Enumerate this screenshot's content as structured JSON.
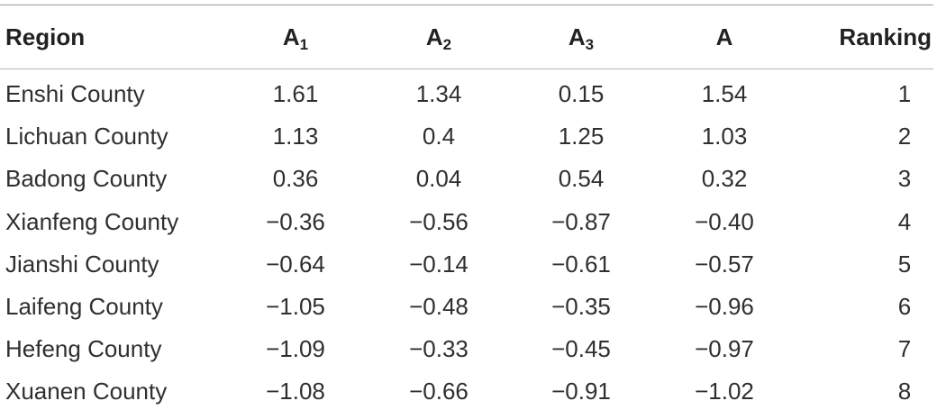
{
  "table": {
    "headers": {
      "region": "Region",
      "a1_base": "A",
      "a1_sub": "1",
      "a2_base": "A",
      "a2_sub": "2",
      "a3_base": "A",
      "a3_sub": "3",
      "a": "A",
      "ranking": "Ranking"
    },
    "rows": [
      {
        "region": "Enshi County",
        "a1": "1.61",
        "a2": "1.34",
        "a3": "0.15",
        "a": "1.54",
        "ranking": "1"
      },
      {
        "region": "Lichuan County",
        "a1": "1.13",
        "a2": "0.4",
        "a3": "1.25",
        "a": "1.03",
        "ranking": "2"
      },
      {
        "region": "Badong County",
        "a1": "0.36",
        "a2": "0.04",
        "a3": "0.54",
        "a": "0.32",
        "ranking": "3"
      },
      {
        "region": "Xianfeng County",
        "a1": "−0.36",
        "a2": "−0.56",
        "a3": "−0.87",
        "a": "−0.40",
        "ranking": "4"
      },
      {
        "region": "Jianshi County",
        "a1": "−0.64",
        "a2": "−0.14",
        "a3": "−0.61",
        "a": "−0.57",
        "ranking": "5"
      },
      {
        "region": "Laifeng County",
        "a1": "−1.05",
        "a2": "−0.48",
        "a3": "−0.35",
        "a": "−0.96",
        "ranking": "6"
      },
      {
        "region": "Hefeng County",
        "a1": "−1.09",
        "a2": "−0.33",
        "a3": "−0.45",
        "a": "−0.97",
        "ranking": "7"
      },
      {
        "region": "Xuanen County",
        "a1": "−1.08",
        "a2": "−0.66",
        "a3": "−0.91",
        "a": "−1.02",
        "ranking": "8"
      }
    ]
  }
}
